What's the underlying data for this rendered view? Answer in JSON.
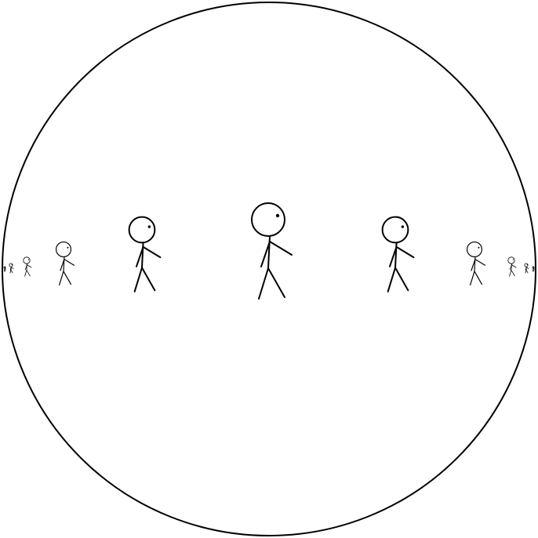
{
  "diagram": {
    "boundary": {
      "shape": "circle",
      "stroke_color": "#000000",
      "fill_color": "#ffffff"
    },
    "figures": {
      "kind": "stick-figure",
      "count": 11,
      "stroke_color": "#000000"
    }
  }
}
